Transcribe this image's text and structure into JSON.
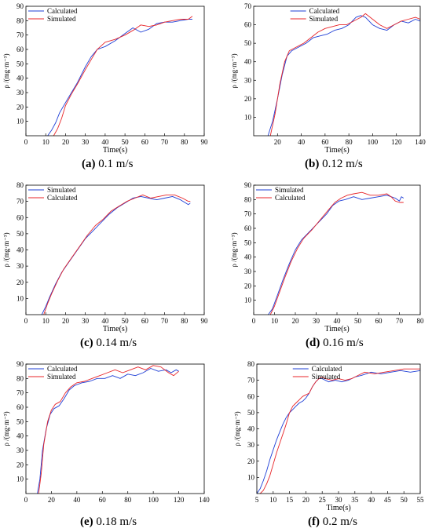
{
  "colors": {
    "blue": "#1f3fd6",
    "red": "#e8262a",
    "axis": "#000000"
  },
  "chart_data": [
    {
      "type": "line",
      "id": "a",
      "caption_letter": "(a)",
      "caption_text": "0.1 m/s",
      "xlabel": "Time(s)",
      "ylabel": "ρ /(mg·m⁻³)",
      "xlim": [
        0,
        90
      ],
      "ylim": [
        0,
        90
      ],
      "xticks": [
        0,
        10,
        20,
        30,
        40,
        50,
        60,
        70,
        80,
        90
      ],
      "yticks": [
        10,
        20,
        30,
        40,
        50,
        60,
        70,
        80,
        90
      ],
      "legend_position": "top-left",
      "series": [
        {
          "name": "Calculated",
          "color": "blue",
          "x": [
            11,
            13,
            15,
            17,
            20,
            23,
            26,
            30,
            33,
            36,
            40,
            45,
            50,
            54,
            58,
            62,
            66,
            70,
            74,
            78,
            82,
            84
          ],
          "y": [
            0,
            4,
            9,
            16,
            23,
            30,
            37,
            48,
            55,
            60,
            62,
            66,
            71,
            75,
            72,
            74,
            78,
            79,
            79,
            80,
            81,
            81
          ]
        },
        {
          "name": "Simulated",
          "color": "red",
          "x": [
            14,
            16,
            18,
            20,
            23,
            26,
            30,
            33,
            36,
            40,
            45,
            50,
            55,
            58,
            62,
            66,
            70,
            74,
            78,
            82,
            84
          ],
          "y": [
            0,
            5,
            12,
            21,
            29,
            36,
            46,
            53,
            60,
            65,
            67,
            70,
            74,
            77,
            76,
            77,
            79,
            80,
            81,
            81,
            83
          ]
        }
      ]
    },
    {
      "type": "line",
      "id": "b",
      "caption_letter": "(b)",
      "caption_text": "0.12 m/s",
      "xlabel": "Time(s)",
      "ylabel": "ρ /(mg·m⁻³)",
      "xlim": [
        0,
        140
      ],
      "ylim": [
        0,
        70
      ],
      "xticks": [
        20,
        40,
        60,
        80,
        100,
        120,
        140
      ],
      "yticks": [
        10,
        20,
        30,
        40,
        50,
        60,
        70
      ],
      "legend_position": "top-center",
      "series": [
        {
          "name": "Calculated",
          "color": "blue",
          "x": [
            12,
            16,
            20,
            24,
            28,
            32,
            38,
            44,
            50,
            56,
            62,
            68,
            74,
            80,
            86,
            90,
            94,
            100,
            106,
            112,
            118,
            124,
            130,
            136,
            140
          ],
          "y": [
            0,
            8,
            20,
            33,
            43,
            46,
            48,
            50,
            53,
            54,
            55,
            57,
            58,
            60,
            64,
            65,
            64,
            60,
            58,
            57,
            60,
            62,
            61,
            63,
            62
          ]
        },
        {
          "name": "Simulated",
          "color": "red",
          "x": [
            14,
            18,
            22,
            26,
            30,
            36,
            42,
            48,
            54,
            60,
            66,
            72,
            78,
            84,
            90,
            94,
            100,
            106,
            112,
            118,
            124,
            130,
            136,
            140
          ],
          "y": [
            0,
            12,
            28,
            40,
            46,
            48,
            50,
            53,
            56,
            58,
            59,
            60,
            60,
            62,
            64,
            66,
            63,
            60,
            58,
            60,
            62,
            63,
            64,
            63
          ]
        }
      ]
    },
    {
      "type": "line",
      "id": "c",
      "caption_letter": "(c)",
      "caption_text": "0.14 m/s",
      "xlabel": "Time(s)",
      "ylabel": "ρ /(mg·m⁻³)",
      "xlim": [
        0,
        90
      ],
      "ylim": [
        0,
        80
      ],
      "xticks": [
        0,
        10,
        20,
        30,
        40,
        50,
        60,
        70,
        80,
        90
      ],
      "yticks": [
        10,
        20,
        30,
        40,
        50,
        60,
        70,
        80
      ],
      "legend_position": "top-left",
      "series": [
        {
          "name": "Simulated",
          "color": "blue",
          "x": [
            8,
            10,
            12,
            15,
            18,
            22,
            26,
            30,
            34,
            38,
            42,
            46,
            50,
            54,
            58,
            62,
            66,
            70,
            74,
            78,
            82,
            83
          ],
          "y": [
            0,
            5,
            11,
            19,
            26,
            33,
            40,
            47,
            52,
            57,
            62,
            66,
            69,
            72,
            73,
            72,
            71,
            72,
            73,
            71,
            68,
            69
          ]
        },
        {
          "name": "Calculated",
          "color": "red",
          "x": [
            9,
            11,
            13,
            16,
            19,
            23,
            27,
            31,
            35,
            39,
            43,
            47,
            51,
            55,
            59,
            63,
            67,
            71,
            75,
            79,
            82,
            83
          ],
          "y": [
            0,
            7,
            13,
            21,
            28,
            35,
            42,
            49,
            55,
            59,
            64,
            67,
            70,
            72,
            74,
            72,
            73,
            74,
            74,
            72,
            70,
            70
          ]
        }
      ]
    },
    {
      "type": "line",
      "id": "d",
      "caption_letter": "(d)",
      "caption_text": "0.16 m/s",
      "xlabel": "Time(s)",
      "ylabel": "ρ /(mg·m⁻³)",
      "xlim": [
        0,
        80
      ],
      "ylim": [
        0,
        90
      ],
      "xticks": [
        0,
        10,
        20,
        30,
        40,
        50,
        60,
        70,
        80
      ],
      "yticks": [
        10,
        20,
        30,
        40,
        50,
        60,
        70,
        80,
        90
      ],
      "legend_position": "top-left",
      "series": [
        {
          "name": "Simulated",
          "color": "blue",
          "x": [
            7,
            9,
            11,
            14,
            17,
            20,
            23,
            27,
            31,
            35,
            38,
            41,
            44,
            48,
            52,
            56,
            60,
            64,
            66,
            68,
            70,
            71,
            72
          ],
          "y": [
            0,
            4,
            12,
            24,
            35,
            45,
            52,
            58,
            64,
            70,
            76,
            79,
            80,
            82,
            80,
            81,
            82,
            83,
            82,
            81,
            79,
            82,
            81
          ]
        },
        {
          "name": "Calculated",
          "color": "red",
          "x": [
            8,
            10,
            12,
            15,
            18,
            21,
            24,
            28,
            32,
            36,
            39,
            42,
            45,
            48,
            52,
            56,
            60,
            64,
            66,
            68,
            70,
            72
          ],
          "y": [
            0,
            6,
            14,
            26,
            37,
            46,
            53,
            59,
            66,
            73,
            78,
            81,
            83,
            84,
            85,
            83,
            83,
            84,
            82,
            79,
            78,
            78
          ]
        }
      ]
    },
    {
      "type": "line",
      "id": "e",
      "caption_letter": "(e)",
      "caption_text": "0.18 m/s",
      "xlabel": "",
      "ylabel": "ρ /(mg·m⁻³)",
      "xlim": [
        0,
        140
      ],
      "ylim": [
        0,
        90
      ],
      "xticks": [
        0,
        20,
        40,
        60,
        80,
        100,
        120,
        140
      ],
      "yticks": [
        10,
        20,
        30,
        40,
        50,
        60,
        70,
        80,
        90
      ],
      "legend_position": "top-left",
      "series": [
        {
          "name": "Calculated",
          "color": "blue",
          "x": [
            9,
            11,
            13,
            16,
            19,
            22,
            26,
            30,
            34,
            38,
            44,
            50,
            56,
            62,
            68,
            74,
            80,
            86,
            92,
            98,
            104,
            110,
            114,
            118,
            120
          ],
          "y": [
            0,
            10,
            30,
            45,
            55,
            59,
            61,
            66,
            72,
            75,
            77,
            78,
            80,
            80,
            82,
            80,
            83,
            82,
            84,
            87,
            85,
            86,
            84,
            86,
            85
          ]
        },
        {
          "name": "Simulated",
          "color": "red",
          "x": [
            10,
            12,
            14,
            17,
            20,
            23,
            27,
            31,
            35,
            40,
            46,
            52,
            58,
            64,
            70,
            76,
            82,
            88,
            94,
            100,
            106,
            112,
            116,
            120
          ],
          "y": [
            0,
            14,
            34,
            50,
            58,
            62,
            64,
            70,
            74,
            77,
            78,
            80,
            82,
            84,
            86,
            84,
            86,
            88,
            86,
            89,
            88,
            84,
            82,
            85
          ]
        }
      ]
    },
    {
      "type": "line",
      "id": "f",
      "caption_letter": "(f)",
      "caption_text": "0.2 m/s",
      "xlabel": "Time(s)",
      "ylabel": "ρ /(mg·m⁻³)",
      "xlim": [
        5,
        55
      ],
      "ylim": [
        0,
        80
      ],
      "xticks": [
        5,
        10,
        15,
        20,
        25,
        30,
        35,
        40,
        45,
        50,
        55
      ],
      "yticks": [
        10,
        20,
        30,
        40,
        50,
        60,
        70,
        80
      ],
      "legend_position": "top-center",
      "series": [
        {
          "name": "Calculated",
          "color": "blue",
          "x": [
            5,
            6,
            7,
            8,
            9,
            10,
            11,
            12,
            13,
            14,
            15,
            16,
            17,
            18,
            19,
            20,
            21,
            22,
            23,
            24,
            25,
            27,
            29,
            31,
            33,
            35,
            37,
            40,
            43,
            46,
            49,
            52,
            55
          ],
          "y": [
            0,
            3,
            8,
            14,
            21,
            27,
            33,
            38,
            43,
            47,
            50,
            52,
            54,
            56,
            57,
            59,
            62,
            66,
            69,
            71,
            71,
            69,
            70,
            69,
            70,
            72,
            73,
            75,
            74,
            75,
            76,
            75,
            76
          ]
        },
        {
          "name": "Simulated",
          "color": "red",
          "x": [
            6,
            7,
            8,
            9,
            10,
            11,
            12,
            13,
            14,
            15,
            16,
            17,
            18,
            19,
            20,
            21,
            22,
            23,
            24,
            25,
            26,
            28,
            30,
            32,
            34,
            36,
            38,
            41,
            44,
            47,
            50,
            53,
            55
          ],
          "y": [
            0,
            2,
            6,
            11,
            18,
            25,
            31,
            37,
            43,
            50,
            54,
            56,
            58,
            60,
            61,
            62,
            66,
            69,
            71,
            72,
            71,
            70,
            71,
            70,
            71,
            73,
            75,
            74,
            75,
            76,
            77,
            77,
            77
          ]
        }
      ]
    }
  ]
}
